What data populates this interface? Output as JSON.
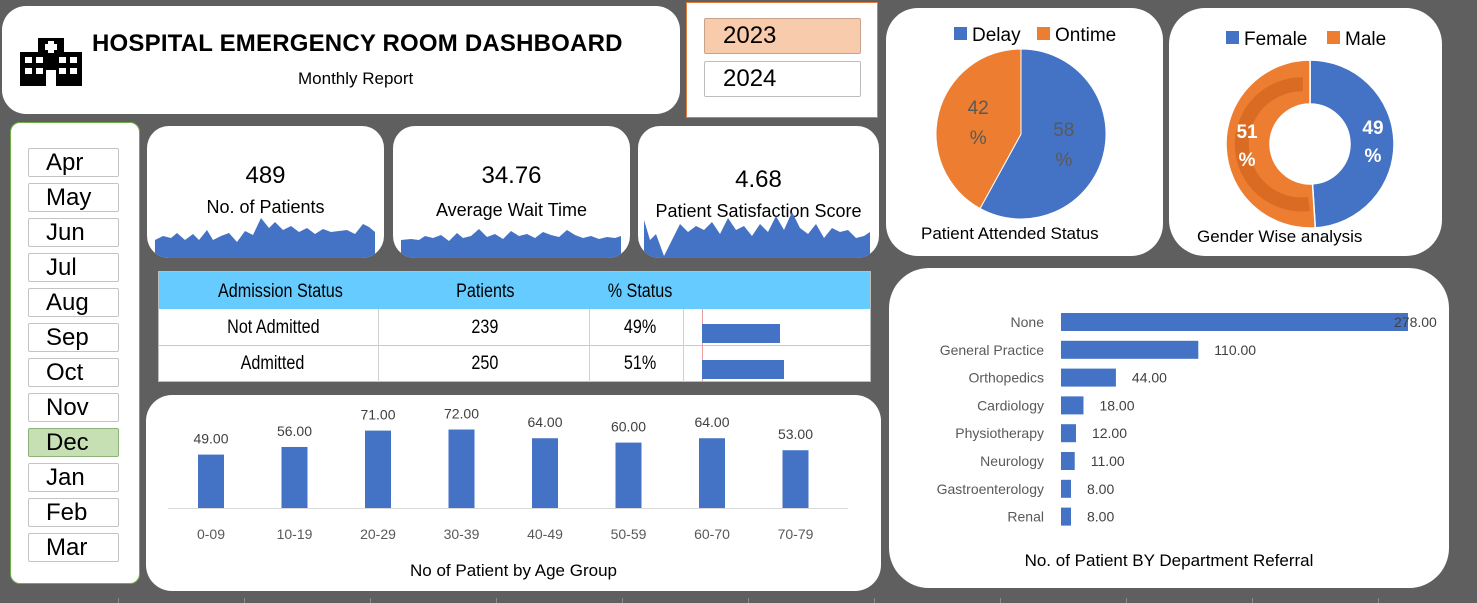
{
  "header": {
    "title": "HOSPITAL EMERGENCY ROOM DASHBOARD",
    "subtitle": "Monthly Report",
    "icon": "hospital-icon"
  },
  "years": [
    {
      "label": "2023",
      "selected": true
    },
    {
      "label": "2024",
      "selected": false
    }
  ],
  "months": [
    {
      "label": "Apr",
      "selected": false
    },
    {
      "label": "May",
      "selected": false
    },
    {
      "label": "Jun",
      "selected": false
    },
    {
      "label": "Jul",
      "selected": false
    },
    {
      "label": "Aug",
      "selected": false
    },
    {
      "label": "Sep",
      "selected": false
    },
    {
      "label": "Oct",
      "selected": false
    },
    {
      "label": "Nov",
      "selected": false
    },
    {
      "label": "Dec",
      "selected": true
    },
    {
      "label": "Jan",
      "selected": false
    },
    {
      "label": "Feb",
      "selected": false
    },
    {
      "label": "Mar",
      "selected": false
    }
  ],
  "kpis": {
    "patients": {
      "value": "489",
      "label": "No. of Patients"
    },
    "wait": {
      "value": "34.76",
      "label": "Average  Wait Time"
    },
    "satisfaction": {
      "value": "4.68",
      "label": "Patient Satisfaction Score"
    }
  },
  "admission_table": {
    "headers": [
      "Admission Status",
      "Patients",
      "% Status"
    ],
    "rows": [
      {
        "status": "Not Admitted",
        "patients": "239",
        "pct": "49%",
        "fraction": 0.49
      },
      {
        "status": "Admitted",
        "patients": "250",
        "pct": "51%",
        "fraction": 0.51
      }
    ]
  },
  "colors": {
    "blue": "#4472c4",
    "orange": "#ed7d31",
    "dark_orange": "#d96b23",
    "header_blue": "#66ccff"
  },
  "chart_data": [
    {
      "type": "bar",
      "title": "No of Patient by Age Group",
      "categories": [
        "0-09",
        "10-19",
        "20-29",
        "30-39",
        "40-49",
        "50-59",
        "60-70",
        "70-79"
      ],
      "values": [
        49,
        56,
        71,
        72,
        64,
        60,
        64,
        53
      ],
      "value_labels": [
        "49.00",
        "56.00",
        "71.00",
        "72.00",
        "64.00",
        "60.00",
        "64.00",
        "53.00"
      ],
      "grid": false
    },
    {
      "type": "pie",
      "title": "Patient Attended Status",
      "categories": [
        "Delay",
        "Ontime"
      ],
      "values": [
        58,
        42
      ],
      "pct_labels": [
        "58",
        "42"
      ],
      "pct_symbol": "%",
      "legend": "top"
    },
    {
      "type": "pie",
      "title": "Gender Wise analysis",
      "categories": [
        "Female",
        "Male"
      ],
      "values": [
        49,
        51
      ],
      "pct_labels": [
        "49",
        "51"
      ],
      "pct_symbol": "%",
      "legend": "top",
      "style": "donut"
    },
    {
      "type": "bar",
      "orientation": "horizontal",
      "title": "No. of Patient BY Department Referral",
      "categories": [
        "None",
        "General Practice",
        "Orthopedics",
        "Cardiology",
        "Physiotherapy",
        "Neurology",
        "Gastroenterology",
        "Renal"
      ],
      "values": [
        278,
        110,
        44,
        18,
        12,
        11,
        8,
        8
      ],
      "value_labels": [
        "278.00",
        "110.00",
        "44.00",
        "18.00",
        "12.00",
        "11.00",
        "8.00",
        "8.00"
      ],
      "grid": false
    }
  ]
}
